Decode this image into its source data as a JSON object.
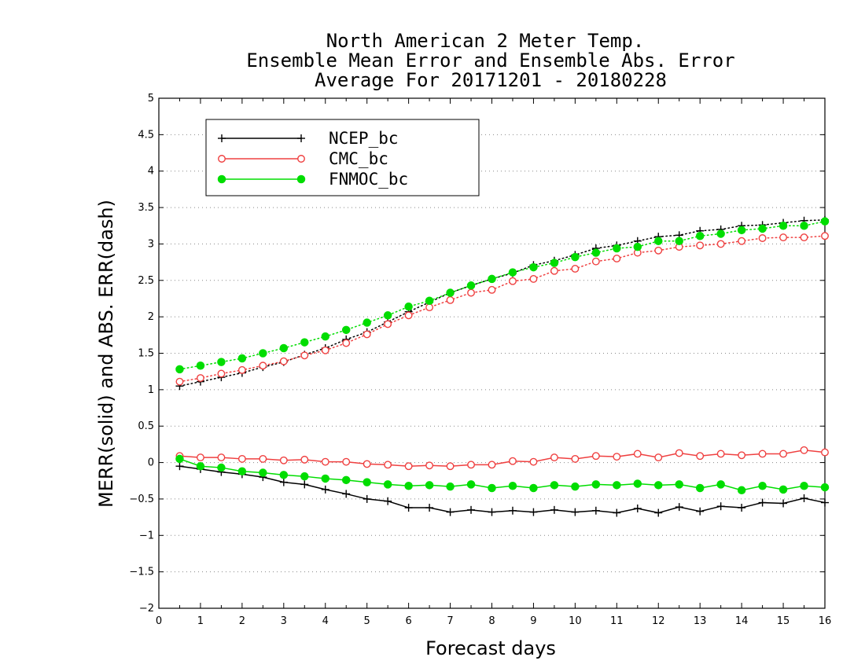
{
  "chart_data": {
    "type": "line",
    "title": [
      "North American 2 Meter Temp.",
      "Ensemble Mean Error and Ensemble Abs. Error",
      "Average For 20171201 - 20180228"
    ],
    "xlabel": "Forecast days",
    "ylabel": "MERR(solid) and ABS. ERR(dash)",
    "xlim": [
      0,
      16
    ],
    "ylim": [
      -2,
      5
    ],
    "xticks": [
      0,
      1,
      2,
      3,
      4,
      5,
      6,
      7,
      8,
      9,
      10,
      11,
      12,
      13,
      14,
      15,
      16
    ],
    "yticks": [
      -2,
      -1.5,
      -1,
      -0.5,
      0,
      0.5,
      1,
      1.5,
      2,
      2.5,
      3,
      3.5,
      4,
      4.5,
      5
    ],
    "grid": true,
    "legend_placement": "top-left",
    "x": [
      0.5,
      1,
      1.5,
      2,
      2.5,
      3,
      3.5,
      4,
      4.5,
      5,
      5.5,
      6,
      6.5,
      7,
      7.5,
      8,
      8.5,
      9,
      9.5,
      10,
      10.5,
      11,
      11.5,
      12,
      12.5,
      13,
      13.5,
      14,
      14.5,
      15,
      15.5,
      16
    ],
    "series": [
      {
        "name": "NCEP_bc",
        "color": "#000000",
        "marker": "plus",
        "merr": [
          -0.05,
          -0.09,
          -0.13,
          -0.16,
          -0.2,
          -0.27,
          -0.3,
          -0.37,
          -0.43,
          -0.5,
          -0.53,
          -0.62,
          -0.62,
          -0.68,
          -0.65,
          -0.68,
          -0.66,
          -0.68,
          -0.65,
          -0.68,
          -0.66,
          -0.69,
          -0.63,
          -0.69,
          -0.61,
          -0.67,
          -0.6,
          -0.62,
          -0.55,
          -0.56,
          -0.49,
          -0.55
        ],
        "abs_err": [
          1.05,
          1.11,
          1.17,
          1.23,
          1.31,
          1.38,
          1.48,
          1.57,
          1.69,
          1.79,
          1.93,
          2.07,
          2.2,
          2.33,
          2.43,
          2.52,
          2.6,
          2.71,
          2.77,
          2.85,
          2.94,
          2.98,
          3.04,
          3.1,
          3.12,
          3.18,
          3.2,
          3.25,
          3.26,
          3.29,
          3.32,
          3.33
        ]
      },
      {
        "name": "CMC_bc",
        "color": "#ef4040",
        "marker": "open-circle",
        "merr": [
          0.09,
          0.07,
          0.07,
          0.05,
          0.05,
          0.03,
          0.04,
          0.01,
          0.01,
          -0.02,
          -0.03,
          -0.05,
          -0.04,
          -0.05,
          -0.03,
          -0.03,
          0.02,
          0.01,
          0.07,
          0.05,
          0.09,
          0.08,
          0.12,
          0.07,
          0.13,
          0.09,
          0.12,
          0.1,
          0.12,
          0.12,
          0.17,
          0.14
        ],
        "abs_err": [
          1.11,
          1.16,
          1.22,
          1.27,
          1.33,
          1.39,
          1.47,
          1.54,
          1.64,
          1.76,
          1.9,
          2.02,
          2.13,
          2.23,
          2.33,
          2.37,
          2.49,
          2.52,
          2.63,
          2.66,
          2.76,
          2.8,
          2.88,
          2.91,
          2.96,
          2.98,
          3.0,
          3.04,
          3.08,
          3.09,
          3.09,
          3.11
        ]
      },
      {
        "name": "FNMOC_bc",
        "color": "#00dd00",
        "marker": "filled-circle",
        "merr": [
          0.05,
          -0.05,
          -0.07,
          -0.12,
          -0.14,
          -0.17,
          -0.19,
          -0.22,
          -0.24,
          -0.27,
          -0.3,
          -0.32,
          -0.31,
          -0.33,
          -0.3,
          -0.35,
          -0.32,
          -0.35,
          -0.31,
          -0.33,
          -0.3,
          -0.31,
          -0.29,
          -0.31,
          -0.3,
          -0.35,
          -0.3,
          -0.38,
          -0.32,
          -0.37,
          -0.32,
          -0.34
        ],
        "abs_err": [
          1.28,
          1.33,
          1.38,
          1.43,
          1.5,
          1.57,
          1.65,
          1.73,
          1.82,
          1.92,
          2.02,
          2.14,
          2.22,
          2.33,
          2.43,
          2.52,
          2.61,
          2.68,
          2.74,
          2.82,
          2.88,
          2.94,
          2.96,
          3.04,
          3.04,
          3.11,
          3.14,
          3.19,
          3.21,
          3.25,
          3.25,
          3.31
        ]
      }
    ]
  }
}
